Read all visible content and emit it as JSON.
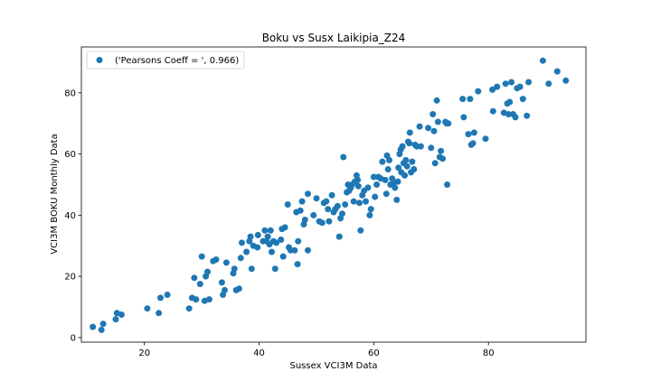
{
  "chart_data": {
    "type": "scatter",
    "title": "Boku vs Susx Laikipia_Z24",
    "xlabel": "Sussex VCI3M Data",
    "ylabel": "VCI3M BOKU Monthly Data",
    "xlim": [
      9,
      97
    ],
    "ylim": [
      -1.5,
      95
    ],
    "xticks": [
      20,
      40,
      60,
      80
    ],
    "yticks": [
      0,
      20,
      40,
      60,
      80
    ],
    "grid": false,
    "legend_position": "top-left",
    "marker_color": "#1f77b4",
    "series": [
      {
        "name": "('Pearsons Coeff = ', 0.966)",
        "points": [
          [
            11,
            3.5
          ],
          [
            12.5,
            2.5
          ],
          [
            12.8,
            4.5
          ],
          [
            15,
            6
          ],
          [
            15.2,
            8
          ],
          [
            16,
            7.5
          ],
          [
            20.5,
            9.5
          ],
          [
            22.5,
            8
          ],
          [
            22.8,
            13
          ],
          [
            24,
            14
          ],
          [
            27.8,
            9.5
          ],
          [
            28.3,
            13
          ],
          [
            28.7,
            19.5
          ],
          [
            29,
            12.5
          ],
          [
            29.7,
            17.5
          ],
          [
            30,
            26.5
          ],
          [
            30.5,
            12
          ],
          [
            30.7,
            20
          ],
          [
            31,
            21.5
          ],
          [
            31.3,
            12.5
          ],
          [
            32,
            25
          ],
          [
            32.5,
            25.5
          ],
          [
            33.5,
            18
          ],
          [
            33.7,
            14
          ],
          [
            34,
            15.5
          ],
          [
            34.3,
            24.5
          ],
          [
            35.5,
            21
          ],
          [
            35.7,
            22.5
          ],
          [
            36,
            15.5
          ],
          [
            36.5,
            16
          ],
          [
            36.8,
            26
          ],
          [
            37,
            31
          ],
          [
            37.8,
            28
          ],
          [
            38.3,
            31.5
          ],
          [
            38.5,
            33
          ],
          [
            38.7,
            22.5
          ],
          [
            39,
            30
          ],
          [
            39.7,
            29.5
          ],
          [
            39.8,
            33.5
          ],
          [
            40.7,
            31.5
          ],
          [
            41,
            35
          ],
          [
            41.3,
            31.5
          ],
          [
            41.5,
            33
          ],
          [
            41.8,
            30.5
          ],
          [
            42,
            35
          ],
          [
            42.2,
            28
          ],
          [
            42.5,
            31.5
          ],
          [
            42.8,
            22.5
          ],
          [
            43,
            31
          ],
          [
            43.8,
            32
          ],
          [
            44,
            35.5
          ],
          [
            44.2,
            26.5
          ],
          [
            44.5,
            36
          ],
          [
            45,
            43.5
          ],
          [
            45.2,
            29.5
          ],
          [
            45.5,
            28.5
          ],
          [
            46.2,
            28.5
          ],
          [
            46.5,
            41
          ],
          [
            46.7,
            24
          ],
          [
            46.8,
            31.5
          ],
          [
            47.2,
            41.5
          ],
          [
            47.5,
            44.5
          ],
          [
            47.8,
            37
          ],
          [
            48,
            38.5
          ],
          [
            48.5,
            28.5
          ],
          [
            48.5,
            47
          ],
          [
            49.5,
            40
          ],
          [
            50,
            45.5
          ],
          [
            50.5,
            38
          ],
          [
            51,
            37.5
          ],
          [
            51.3,
            44
          ],
          [
            51.7,
            44.5
          ],
          [
            52,
            42
          ],
          [
            52.2,
            38
          ],
          [
            52.7,
            46.5
          ],
          [
            53,
            41
          ],
          [
            53.3,
            42
          ],
          [
            53.7,
            43
          ],
          [
            54,
            33
          ],
          [
            54.2,
            39
          ],
          [
            54.5,
            40.5
          ],
          [
            54.7,
            59
          ],
          [
            55,
            43.5
          ],
          [
            55.3,
            47.5
          ],
          [
            55.5,
            50
          ],
          [
            55.7,
            48
          ],
          [
            56,
            49
          ],
          [
            56.2,
            50
          ],
          [
            56.5,
            44.5
          ],
          [
            56.7,
            51
          ],
          [
            57,
            53
          ],
          [
            57.2,
            51.5
          ],
          [
            57.3,
            49.5
          ],
          [
            57.5,
            44
          ],
          [
            57.7,
            35
          ],
          [
            58,
            46.5
          ],
          [
            58.3,
            48
          ],
          [
            58.6,
            44.5
          ],
          [
            59,
            49
          ],
          [
            59.3,
            40
          ],
          [
            59.5,
            42
          ],
          [
            60,
            52.5
          ],
          [
            60.2,
            46
          ],
          [
            60.5,
            50
          ],
          [
            60.8,
            52.5
          ],
          [
            61.2,
            52
          ],
          [
            61.5,
            57.5
          ],
          [
            62,
            51.5
          ],
          [
            62.2,
            47
          ],
          [
            62.3,
            59.5
          ],
          [
            62.5,
            55
          ],
          [
            62.7,
            58
          ],
          [
            62.9,
            50
          ],
          [
            63.2,
            52
          ],
          [
            63.5,
            50.5
          ],
          [
            63.7,
            49
          ],
          [
            64,
            45
          ],
          [
            64.2,
            51
          ],
          [
            64.3,
            55.5
          ],
          [
            64.5,
            60
          ],
          [
            64.7,
            61.5
          ],
          [
            64.8,
            54
          ],
          [
            65,
            62.5
          ],
          [
            65.2,
            57
          ],
          [
            65.4,
            53
          ],
          [
            65.6,
            58
          ],
          [
            65.8,
            56
          ],
          [
            66,
            64
          ],
          [
            66.2,
            63.5
          ],
          [
            66.3,
            67
          ],
          [
            66.5,
            54
          ],
          [
            66.7,
            57.5
          ],
          [
            67,
            55
          ],
          [
            67.2,
            63
          ],
          [
            67.5,
            62.5
          ],
          [
            68,
            69
          ],
          [
            68.2,
            62.5
          ],
          [
            69.5,
            68.5
          ],
          [
            70,
            62
          ],
          [
            70.3,
            73
          ],
          [
            70.5,
            67.5
          ],
          [
            70.7,
            57
          ],
          [
            71,
            77.5
          ],
          [
            71.2,
            70.5
          ],
          [
            71.5,
            59
          ],
          [
            71.7,
            61
          ],
          [
            72,
            58.5
          ],
          [
            72.5,
            70.5
          ],
          [
            72.7,
            70
          ],
          [
            72.8,
            50
          ],
          [
            73,
            70
          ],
          [
            75.5,
            78
          ],
          [
            75.7,
            72
          ],
          [
            76.5,
            66.5
          ],
          [
            76.8,
            78
          ],
          [
            77,
            63
          ],
          [
            77.3,
            63.5
          ],
          [
            77.5,
            67
          ],
          [
            78.2,
            80.5
          ],
          [
            79.5,
            65
          ],
          [
            80.7,
            81
          ],
          [
            80.8,
            74
          ],
          [
            81.5,
            82
          ],
          [
            82.7,
            73.5
          ],
          [
            83,
            83
          ],
          [
            83.3,
            76.5
          ],
          [
            83.5,
            73
          ],
          [
            83.7,
            77
          ],
          [
            84,
            83.5
          ],
          [
            84.3,
            73
          ],
          [
            84.7,
            72
          ],
          [
            85,
            81.5
          ],
          [
            85.5,
            82
          ],
          [
            86,
            78
          ],
          [
            86.7,
            72.5
          ],
          [
            87,
            83.5
          ],
          [
            89.5,
            90.5
          ],
          [
            90.5,
            83
          ],
          [
            92,
            87
          ],
          [
            93.5,
            84
          ]
        ]
      }
    ]
  }
}
